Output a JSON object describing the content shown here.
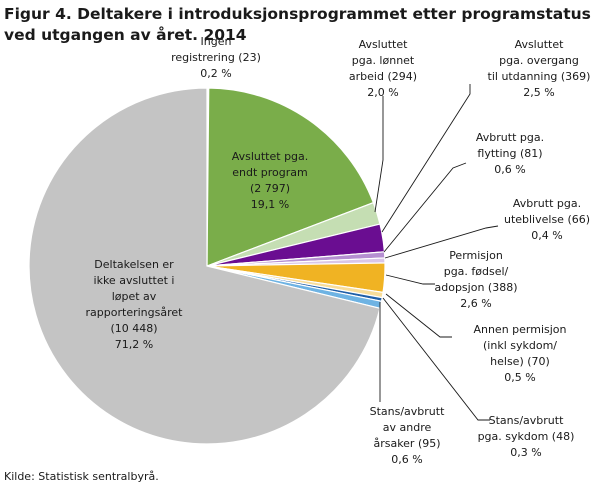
{
  "title": "Figur 4. Deltakere i introduksjonsprogrammet etter programstatus ved utgangen av året. 2014",
  "source": "Kilde: Statistisk sentralbyrå.",
  "chart_data": {
    "type": "pie",
    "title": "Figur 4. Deltakere i introduksjonsprogrammet etter programstatus ved utgangen av året. 2014",
    "slices": [
      {
        "label": "Ingen registrering",
        "value": 23,
        "percent": "0,2 %",
        "color": "#ffffff",
        "lines": [
          "Ingen",
          "registrering  (23)",
          "0,2 %"
        ]
      },
      {
        "label": "Avsluttet pga. endt program",
        "value": 2797,
        "percent": "19,1 %",
        "color": "#7aad4a",
        "lines": [
          "Avsluttet pga.",
          "endt program",
          "(2 797)",
          "19,1 %"
        ]
      },
      {
        "label": "Avsluttet pga. lønnet arbeid",
        "value": 294,
        "percent": "2,0 %",
        "color": "#c5deb3",
        "lines": [
          "Avsluttet",
          "pga. lønnet",
          "arbeid  (294)",
          "2,0 %"
        ]
      },
      {
        "label": "Avsluttet pga. overgang til utdanning",
        "value": 369,
        "percent": "2,5 %",
        "color": "#6a0d91",
        "lines": [
          "Avsluttet",
          "pga.  overgang",
          "til utdanning (369)",
          "2,5 %"
        ]
      },
      {
        "label": "Avbrutt pga. flytting",
        "value": 81,
        "percent": "0,6 %",
        "color": "#b58fd1",
        "lines": [
          "Avbrutt pga.",
          "flytting (81)",
          "0,6 %"
        ]
      },
      {
        "label": "Avbrutt pga. uteblivelse",
        "value": 66,
        "percent": "0,4 %",
        "color": "#d9c6e8",
        "lines": [
          "Avbrutt pga.",
          "uteblivelse  (66)",
          "0,4 %"
        ]
      },
      {
        "label": "Permisjon pga. fødsel/ adopsjon",
        "value": 388,
        "percent": "2,6 %",
        "color": "#f0b323",
        "lines": [
          "Permisjon",
          "pga. fødsel/",
          "adopsjon (388)",
          "2,6 %"
        ]
      },
      {
        "label": "Annen permisjon (inkl sykdom/ helse)",
        "value": 70,
        "percent": "0,5 %",
        "color": "#f8dd9a",
        "lines": [
          "Annen permisjon",
          "(inkl sykdom/",
          "helse) (70)",
          "0,5 %"
        ]
      },
      {
        "label": "Stans/avbrutt pga. sykdom",
        "value": 48,
        "percent": "0,3 %",
        "color": "#1f5fa8",
        "lines": [
          "Stans/avbrutt",
          "pga. sykdom (48)",
          "0,3 %"
        ]
      },
      {
        "label": "Stans/avbrutt av andre årsaker",
        "value": 95,
        "percent": "0,6 %",
        "color": "#6eb3e3",
        "lines": [
          "Stans/avbrutt",
          "av andre",
          "årsaker  (95)",
          "0,6 %"
        ]
      },
      {
        "label": "Deltakelsen er ikke avsluttet i løpet av rapporteringsåret",
        "value": 10448,
        "percent": "71,2 %",
        "color": "#c4c4c4",
        "lines": [
          "Deltakelsen  er",
          "ikke avsluttet i",
          "løpet av",
          "rapporteringsåret",
          "(10 448)",
          "71,2 %"
        ]
      }
    ]
  }
}
